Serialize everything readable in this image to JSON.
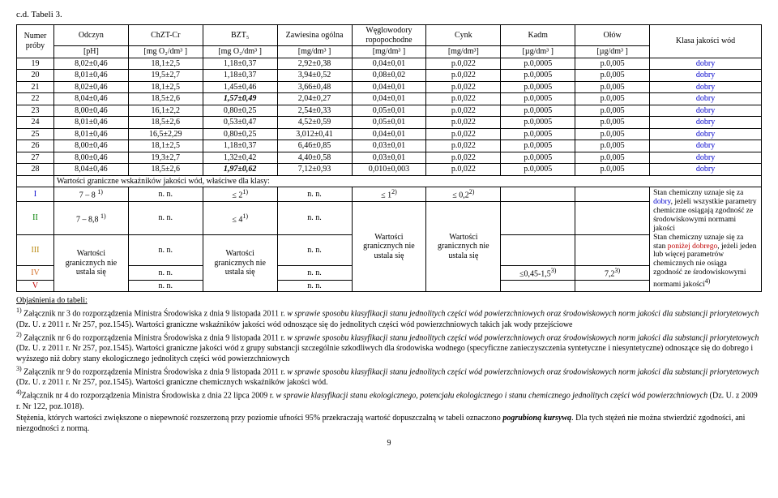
{
  "title": "c.d. Tabeli 3.",
  "headers": {
    "col1a": "Numer próby",
    "col2a": "Odczyn",
    "col2b": "[pH]",
    "col3a": "ChZT-Cr",
    "col3b": "[mg O₂/dm³ ]",
    "col4a": "BZT₅",
    "col4b": "[mg O₂/dm³ ]",
    "col5a": "Zawiesina ogólna",
    "col5b": "[mg/dm³ ]",
    "col6a": "Węglowodory ropopochodne",
    "col6b": "[mg/dm³ ]",
    "col7a": "Cynk",
    "col7b": "[mg/dm³]",
    "col8a": "Kadm",
    "col8b": "[µg/dm³ ]",
    "col9a": "Ołów",
    "col9b": "[µg/dm³ ]",
    "col10": "Klasa jakości wód"
  },
  "rows": [
    {
      "n": "19",
      "ph": "8,02±0,46",
      "chzt": "18,1±2,5",
      "bzt": "1,18±0,37",
      "zaw": "2,92±0,38",
      "wegl": "0,04±0,01",
      "cynk": "p.0,022",
      "kadm": "p.0,0005",
      "olow": "p.0,005",
      "klasa": "dobry"
    },
    {
      "n": "20",
      "ph": "8,01±0,46",
      "chzt": "19,5±2,7",
      "bzt": "1,18±0,37",
      "zaw": "3,94±0,52",
      "wegl": "0,08±0,02",
      "cynk": "p.0,022",
      "kadm": "p.0,0005",
      "olow": "p.0,005",
      "klasa": "dobry"
    },
    {
      "n": "21",
      "ph": "8,02±0,46",
      "chzt": "18,1±2,5",
      "bzt": "1,45±0,46",
      "zaw": "3,66±0,48",
      "wegl": "0,04±0,01",
      "cynk": "p.0,022",
      "kadm": "p.0,0005",
      "olow": "p.0,005",
      "klasa": "dobry"
    },
    {
      "n": "22",
      "ph": "8,04±0,46",
      "chzt": "18,5±2,6",
      "bzt": "1,57±0,49",
      "bzt_bi": true,
      "zaw": "2,04±0,27",
      "wegl": "0,04±0,01",
      "cynk": "p.0,022",
      "kadm": "p.0,0005",
      "olow": "p.0,005",
      "klasa": "dobry"
    },
    {
      "n": "23",
      "ph": "8,00±0,46",
      "chzt": "16,1±2,2",
      "bzt": "0,80±0,25",
      "zaw": "2,54±0,33",
      "wegl": "0,05±0,01",
      "cynk": "p.0,022",
      "kadm": "p.0,0005",
      "olow": "p.0,005",
      "klasa": "dobry"
    },
    {
      "n": "24",
      "ph": "8,01±0,46",
      "chzt": "18,5±2,6",
      "bzt": "0,53±0,47",
      "zaw": "4,52±0,59",
      "wegl": "0,05±0,01",
      "cynk": "p.0,022",
      "kadm": "p.0,0005",
      "olow": "p.0,005",
      "klasa": "dobry"
    },
    {
      "n": "25",
      "ph": "8,01±0,46",
      "chzt": "16,5±2,29",
      "bzt": "0,80±0,25",
      "zaw": "3,012±0,41",
      "wegl": "0,04±0,01",
      "cynk": "p.0,022",
      "kadm": "p.0,0005",
      "olow": "p.0,005",
      "klasa": "dobry"
    },
    {
      "n": "26",
      "ph": "8,00±0,46",
      "chzt": "18,1±2,5",
      "bzt": "1,18±0,37",
      "zaw": "6,46±0,85",
      "wegl": "0,03±0,01",
      "cynk": "p.0,022",
      "kadm": "p.0,0005",
      "olow": "p.0,005",
      "klasa": "dobry"
    },
    {
      "n": "27",
      "ph": "8,00±0,46",
      "chzt": "19,3±2,7",
      "bzt": "1,32±0,42",
      "zaw": "4,40±0,58",
      "wegl": "0,03±0,01",
      "cynk": "p.0,022",
      "kadm": "p.0,0005",
      "olow": "p.0,005",
      "klasa": "dobry"
    },
    {
      "n": "28",
      "ph": "8,04±0,46",
      "chzt": "18,5±2,6",
      "bzt": "1,97±0,62",
      "bzt_bi": true,
      "zaw": "7,12±0,93",
      "wegl": "0,010±0,003",
      "cynk": "p.0,022",
      "kadm": "p.0,0005",
      "olow": "p.0,005",
      "klasa": "dobry"
    }
  ],
  "limits_header": "Wartości graniczne wskaźników jakości wód, właściwe dla klasy:",
  "class_rows": {
    "I": {
      "label": "I",
      "ph": "7 – 8 ",
      "ph_sup": "1)",
      "c3": "n. n.",
      "c4": "≤ 2",
      "c4_sup": "1)",
      "c5": "n. n.",
      "c6": "≤ 1",
      "c6_sup": "2)",
      "c7": "≤ 0,2",
      "c7_sup": "2)"
    },
    "II": {
      "label": "II",
      "ph": "7 – 8,8 ",
      "ph_sup": "1)",
      "c3": "n. n.",
      "c4": "≤ 4",
      "c4_sup": "1)",
      "c5": "n. n."
    },
    "III": {
      "label": "III",
      "c3": "n. n.",
      "c5": "n. n."
    },
    "IV": {
      "label": "IV",
      "c3": "n. n.",
      "c5": "n. n."
    },
    "V": {
      "label": "V",
      "c3": "n. n.",
      "c5": "n. n."
    },
    "granicz": "Wartości granicznych nie ustala się",
    "kadm45": "≤0,45-1,5",
    "kadm45_sup": "3)",
    "olow45": "7,2",
    "olow45_sup": "3)"
  },
  "span_note": {
    "l1": "Stan chemiczny uznaje się za",
    "l2a": "dobry",
    "l2b": ", jeżeli wszystkie parametry chemiczne osiągają zgodność ze środowiskowymi normami jakości",
    "l3": "Stan chemiczny uznaje się za stan ",
    "l4a": "poniżej dobrego",
    "l4b": ", jeżeli jeden lub więcej parametrów chemicznych nie osiąga zgodność ze środowiskowymi normami jakości",
    "sup4": "4)"
  },
  "notes": {
    "h": "Objaśnienia do tabeli:",
    "n1a": "1)",
    "n1b": " Załącznik nr 3 do rozporządzenia Ministra Środowiska z dnia 9 listopada 2011 r. ",
    "n1c": "w sprawie sposobu klasyfikacji stanu jednolitych części wód powierzchniowych oraz środowiskowych norm jakości dla substancji priorytetowych",
    "n1d": " (Dz. U. z 2011 r. Nr 257, poz.1545). Wartości graniczne wskaźników jakości wód odnoszące się do jednolitych części wód powierzchniowych takich jak wody przejściowe",
    "n2a": "2)",
    "n2b": " Załącznik nr 6 do rozporządzenia Ministra Środowiska z dnia 9 listopada 2011 r. ",
    "n2c": "w sprawie sposobu klasyfikacji stanu jednolitych części wód powierzchniowych oraz środowiskowych norm jakości dla substancji priorytetowych",
    "n2d": " (Dz. U. z 2011 r. Nr 257, poz.1545). Wartości graniczne jakości wód z grupy substancji szczególnie szkodliwych dla środowiska wodnego (specyficzne zanieczyszczenia syntetyczne i niesyntetyczne) odnoszące się do dobrego i wyższego niż dobry stany ekologicznego jednolitych części wód powierzchniowych",
    "n3a": "3)",
    "n3b": " Załącznik nr 9 do rozporządzenia Ministra Środowiska z dnia 9 listopada 2011 r. ",
    "n3c": "w sprawie sposobu klasyfikacji stanu jednolitych części wód powierzchniowych oraz środowiskowych norm jakości dla substancji priorytetowych",
    "n3d": " (Dz. U. z 2011 r. Nr 257, poz.1545). Wartości graniczne chemicznych wskaźników jakości wód.",
    "n4a": "4)",
    "n4b": "Załącznik nr 4 do rozporządzenia Ministra Środowiska z dnia 22 lipca 2009 r. ",
    "n4c": "w sprawie klasyfikacji stanu ekologicznego, potencjału ekologicznego i stanu chemicznego jednolitych części wód powierzchniowych",
    "n4d": " (Dz. U. z 2009 r. Nr 122, poz.1018).",
    "final1": "Stężenia, których wartości zwiększone o niepewność rozszerzoną przy poziomie ufności 95% przekraczają wartość dopuszczalną w tabeli oznaczono ",
    "final2": "pogrubioną kursywą",
    "final3": ". Dla tych stężeń nie można stwierdzić zgodności, ani niezgodności z normą."
  },
  "page": "9"
}
